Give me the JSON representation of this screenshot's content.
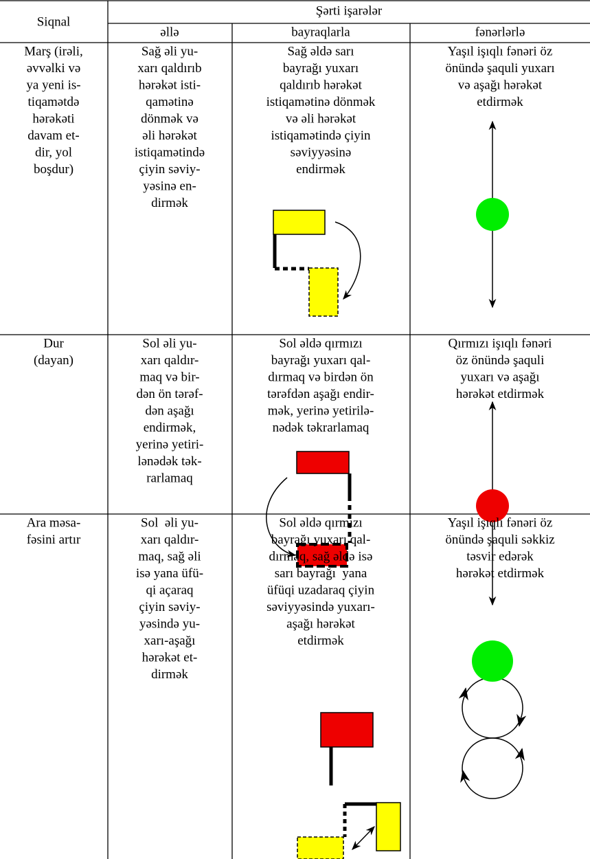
{
  "table": {
    "header": {
      "signal": "Siqnal",
      "group": "Şərti işarələr",
      "columns": [
        "əllə",
        "bayraqlarla",
        "fənərlərlə"
      ]
    },
    "rows": [
      [
        [
          "Marş (irəli,",
          "əvvəlki və",
          "ya yeni is-",
          "tiqamətdə",
          "hərəkəti",
          "davam et-",
          "dir, yol",
          "boşdur)"
        ],
        [
          "Sağ əli yu-",
          "xarı qaldırıb",
          "hərəkət isti-",
          "qamətinə",
          "dönmək və",
          "əli hərəkət",
          "istiqamətində",
          "çiyin səviy-",
          "yəsinə en-",
          "dirmək"
        ],
        [
          "Sağ əldə sarı",
          "bayrağı yuxarı",
          "qaldırıb hərəkət",
          "istiqamətinə dönmək",
          "və əli hərəkət",
          "istiqamətində çiyin",
          "səviyyəsinə",
          "endirmək"
        ],
        [
          "Yaşıl işıqlı fənəri öz",
          "önündə şaquli yuxarı",
          "və aşağı hərəkət",
          "etdirmək"
        ]
      ],
      [
        [
          "Dur",
          "(dayan)"
        ],
        [
          "Sol əli yu-",
          "xarı qaldır-",
          "maq və bir-",
          "dən ön tərəf-",
          "dən aşağı",
          "endirmək,",
          "yerinə yetiri-",
          "lənədək tək-",
          "rarlamaq"
        ],
        [
          "Sol əldə qırmızı",
          "bayrağı yuxarı qal-",
          "dırmaq və birdən ön",
          "tərəfdən aşağı endir-",
          "mək, yerinə yetirilə-",
          "nədək təkrarlamaq"
        ],
        [
          "Qırmızı işıqlı fənəri",
          "öz önündə şaquli",
          "yuxarı və aşağı",
          "hərəkət etdirmək"
        ]
      ],
      [
        [
          "Ara məsa-",
          "fəsini artır"
        ],
        [
          "Sol  əli yu-",
          "xarı qaldır-",
          "maq, sağ əli",
          "isə yana üfü-",
          "qi açaraq",
          "çiyin səviy-",
          "yəsində yu-",
          "xarı-aşağı",
          "hərəkət et-",
          "dirmək"
        ],
        [
          "Sol əldə qırmızı",
          "bayrağı yuxarı qal-",
          "dırmaq, sağ əldə isə",
          "sarı bayrağı  yana",
          "üfüqi uzadaraq çiyin",
          "səviyyəsində yuxarı-",
          "aşağı hərəkət",
          "etdirmək"
        ],
        [
          "Yaşıl işıqlı fənəri öz",
          "önündə şaquli səkkiz",
          "təsvir edərək",
          "hərəkət etdirmək"
        ]
      ]
    ]
  }
}
